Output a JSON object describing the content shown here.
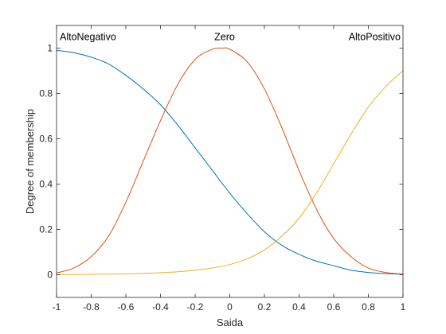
{
  "chart_data": {
    "type": "line",
    "title": "",
    "xlabel": "Saida",
    "ylabel": "Degree of membership",
    "xlim": [
      -1,
      1
    ],
    "ylim": [
      -0.1,
      1.1
    ],
    "xticks": [
      -1,
      -0.8,
      -0.6,
      -0.4,
      -0.2,
      0,
      0.2,
      0.4,
      0.6,
      0.8,
      1
    ],
    "xtick_labels": [
      "-1",
      "-0.8",
      "-0.6",
      "-0.4",
      "-0.2",
      "0",
      "0.2",
      "0.4",
      "0.6",
      "0.8",
      "1"
    ],
    "yticks": [
      0,
      0.2,
      0.4,
      0.6,
      0.8,
      1
    ],
    "ytick_labels": [
      "0",
      "0.2",
      "0.4",
      "0.6",
      "0.8",
      "1"
    ],
    "grid": false,
    "series": [
      {
        "name": "AltoNegativo",
        "color": "#0072BD",
        "x": [
          -1,
          -0.9,
          -0.8,
          -0.7,
          -0.6,
          -0.5,
          -0.4,
          -0.3,
          -0.2,
          -0.1,
          0,
          0.1,
          0.2,
          0.3,
          0.4,
          0.5,
          0.6,
          0.7,
          0.8,
          0.9,
          1
        ],
        "y": [
          0.99,
          0.98,
          0.96,
          0.93,
          0.88,
          0.82,
          0.75,
          0.66,
          0.56,
          0.46,
          0.36,
          0.27,
          0.19,
          0.13,
          0.09,
          0.06,
          0.04,
          0.02,
          0.01,
          0.005,
          0.003
        ]
      },
      {
        "name": "Zero",
        "color": "#D95319",
        "x": [
          -1,
          -0.9,
          -0.8,
          -0.7,
          -0.6,
          -0.5,
          -0.4,
          -0.3,
          -0.2,
          -0.1,
          -0.04,
          0,
          0.1,
          0.2,
          0.3,
          0.4,
          0.5,
          0.6,
          0.7,
          0.8,
          0.9,
          1
        ],
        "y": [
          0.008,
          0.03,
          0.08,
          0.17,
          0.32,
          0.5,
          0.68,
          0.84,
          0.95,
          0.995,
          1.0,
          0.995,
          0.94,
          0.82,
          0.65,
          0.46,
          0.29,
          0.16,
          0.08,
          0.03,
          0.01,
          0.003
        ]
      },
      {
        "name": "AltoPositivo",
        "color": "#EDB120",
        "x": [
          -1,
          -0.9,
          -0.8,
          -0.7,
          -0.6,
          -0.5,
          -0.4,
          -0.3,
          -0.2,
          -0.1,
          0,
          0.1,
          0.2,
          0.3,
          0.4,
          0.5,
          0.6,
          0.7,
          0.8,
          0.9,
          1
        ],
        "y": [
          0.0,
          0.001,
          0.002,
          0.003,
          0.004,
          0.006,
          0.009,
          0.013,
          0.02,
          0.03,
          0.045,
          0.07,
          0.11,
          0.17,
          0.25,
          0.36,
          0.49,
          0.62,
          0.74,
          0.83,
          0.9
        ]
      }
    ],
    "mf_labels": [
      {
        "text": "AltoNegativo",
        "x": -1,
        "y": 1.05,
        "anchor": "start"
      },
      {
        "text": "Zero",
        "x": -0.03,
        "y": 1.05,
        "anchor": "middle"
      },
      {
        "text": "AltoPositivo",
        "x": 1,
        "y": 1.05,
        "anchor": "end"
      }
    ]
  }
}
